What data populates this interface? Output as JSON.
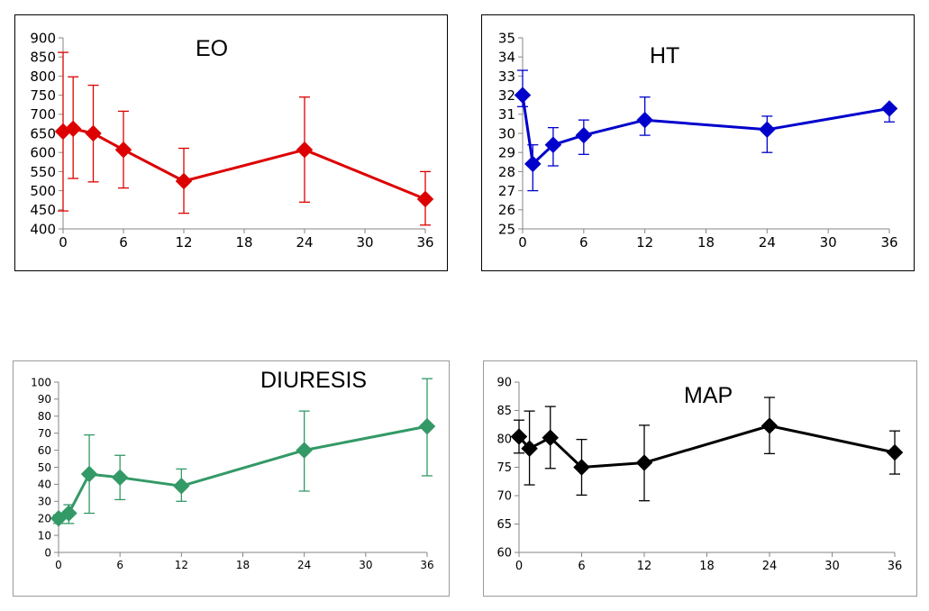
{
  "chart_data": [
    {
      "type": "line",
      "title": "EO",
      "xlabel": "",
      "ylabel": "",
      "x": [
        0,
        1,
        3,
        6,
        12,
        24,
        36
      ],
      "series": [
        {
          "values": [
            655,
            662,
            650,
            607,
            525,
            607,
            478
          ],
          "error_low": [
            447,
            532,
            523,
            507,
            441,
            470,
            410
          ],
          "error_high": [
            862,
            798,
            776,
            708,
            611,
            745,
            550
          ]
        }
      ],
      "xticks": [
        0,
        6,
        12,
        18,
        24,
        30,
        36
      ],
      "yticks": [
        400,
        450,
        500,
        550,
        600,
        650,
        700,
        750,
        800,
        850,
        900
      ],
      "xlim": [
        0,
        36
      ],
      "ylim": [
        400,
        900
      ],
      "grid": false,
      "color": "#dd0000"
    },
    {
      "type": "line",
      "title": "HT",
      "xlabel": "",
      "ylabel": "",
      "x": [
        0,
        1,
        3,
        6,
        12,
        24,
        36
      ],
      "series": [
        {
          "values": [
            32.0,
            28.4,
            29.4,
            29.9,
            30.7,
            30.2,
            31.3
          ],
          "error_low": [
            31.4,
            27.0,
            28.3,
            28.9,
            29.9,
            29.0,
            30.6
          ],
          "error_high": [
            33.3,
            29.4,
            30.3,
            30.7,
            31.9,
            30.9,
            31.3
          ]
        }
      ],
      "xticks": [
        0,
        6,
        12,
        18,
        24,
        30,
        36
      ],
      "yticks": [
        25,
        26,
        27,
        28,
        29,
        30,
        31,
        32,
        33,
        34,
        35
      ],
      "xlim": [
        0,
        36
      ],
      "ylim": [
        25,
        35
      ],
      "grid": false,
      "color": "#0000cc"
    },
    {
      "type": "line",
      "title": "DIURESIS",
      "xlabel": "",
      "ylabel": "",
      "x": [
        0,
        1,
        3,
        6,
        12,
        24,
        36
      ],
      "series": [
        {
          "values": [
            20,
            23,
            46,
            44,
            39,
            60,
            74
          ],
          "error_low": [
            17,
            17,
            23,
            31,
            30,
            36,
            45
          ],
          "error_high": [
            22,
            28,
            69,
            57,
            49,
            83,
            102
          ]
        }
      ],
      "xticks": [
        0,
        6,
        12,
        18,
        24,
        30,
        36
      ],
      "yticks": [
        0,
        10,
        20,
        30,
        40,
        50,
        60,
        70,
        80,
        90,
        100
      ],
      "xlim": [
        0,
        36
      ],
      "ylim": [
        0,
        100
      ],
      "grid": false,
      "color": "#339966"
    },
    {
      "type": "line",
      "title": "MAP",
      "xlabel": "",
      "ylabel": "",
      "x": [
        0,
        1,
        3,
        6,
        12,
        24,
        36
      ],
      "series": [
        {
          "values": [
            80.4,
            78.3,
            80.2,
            75.0,
            75.8,
            82.3,
            77.6
          ],
          "error_low": [
            77.5,
            71.9,
            74.8,
            70.1,
            69.1,
            77.4,
            73.8
          ],
          "error_high": [
            83.3,
            84.9,
            85.7,
            79.9,
            82.4,
            87.3,
            81.4
          ]
        }
      ],
      "xticks": [
        0,
        6,
        12,
        18,
        24,
        30,
        36
      ],
      "yticks": [
        60,
        65,
        70,
        75,
        80,
        85,
        90
      ],
      "xlim": [
        0,
        36
      ],
      "ylim": [
        60,
        90
      ],
      "grid": false,
      "color": "#000000"
    }
  ]
}
